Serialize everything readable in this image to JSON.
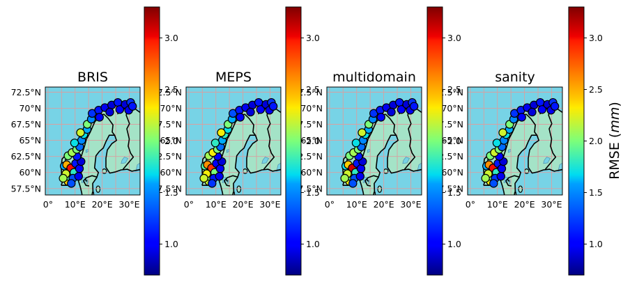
{
  "figure": {
    "panels": [
      {
        "title": "BRIS"
      },
      {
        "title": "MEPS"
      },
      {
        "title": "multidomain"
      },
      {
        "title": "sanity"
      }
    ],
    "lat_ticks": [
      "72.5°N",
      "70°N",
      "67.5°N",
      "65°N",
      "62.5°N",
      "60°N",
      "57.5°N"
    ],
    "lon_ticks": [
      "0°",
      "10°E",
      "20°E",
      "30°E"
    ],
    "colorbar": {
      "ticks": [
        "1.0",
        "1.5",
        "2.0",
        "2.5",
        "3.0"
      ],
      "label_prefix": "RMSE (",
      "label_var": "mm",
      "label_suffix": ")",
      "colormap": "jet",
      "range": [
        0.7,
        3.3
      ]
    },
    "colors": {
      "ocean": "#77d3e6",
      "land": "#a4e3c7",
      "gridline": "#d9a0a0",
      "coast": "#000000"
    }
  },
  "chart_data": {
    "type": "scatter",
    "panels": [
      "BRIS",
      "MEPS",
      "multidomain",
      "sanity"
    ],
    "value_label": "RMSE (mm)",
    "extent": {
      "lon": [
        -1,
        34
      ],
      "lat": [
        56.5,
        73.3
      ]
    },
    "stations": [
      {
        "lon": 7.4,
        "lat": 58.6,
        "v": [
          2.4,
          2.2,
          2.3,
          2.3
        ]
      },
      {
        "lon": 7.6,
        "lat": 59.4,
        "v": [
          1.9,
          2.0,
          1.9,
          1.9
        ]
      },
      {
        "lon": 6.0,
        "lat": 61.0,
        "v": [
          1.6,
          1.9,
          1.7,
          1.6
        ]
      },
      {
        "lon": 6.9,
        "lat": 61.2,
        "v": [
          2.5,
          2.6,
          2.4,
          2.6
        ]
      },
      {
        "lon": 8.4,
        "lat": 60.7,
        "v": [
          3.0,
          2.9,
          3.1,
          3.0
        ]
      },
      {
        "lon": 9.6,
        "lat": 60.0,
        "v": [
          1.8,
          2.0,
          1.8,
          1.8
        ]
      },
      {
        "lon": 9.2,
        "lat": 59.1,
        "v": [
          1.3,
          1.1,
          1.3,
          1.2
        ]
      },
      {
        "lon": 10.2,
        "lat": 61.4,
        "v": [
          1.1,
          1.0,
          1.1,
          1.1
        ]
      },
      {
        "lon": 11.6,
        "lat": 60.6,
        "v": [
          1.0,
          1.0,
          1.0,
          1.0
        ]
      },
      {
        "lon": 11.3,
        "lat": 59.4,
        "v": [
          0.95,
          0.95,
          0.95,
          0.95
        ]
      },
      {
        "lon": 12.2,
        "lat": 61.7,
        "v": [
          0.9,
          0.9,
          0.9,
          0.9
        ]
      },
      {
        "lon": 10.7,
        "lat": 62.5,
        "v": [
          1.1,
          1.0,
          1.1,
          1.0
        ]
      },
      {
        "lon": 7.4,
        "lat": 62.6,
        "v": [
          2.0,
          2.1,
          2.0,
          2.0
        ]
      },
      {
        "lon": 8.9,
        "lat": 63.1,
        "v": [
          2.1,
          2.3,
          2.1,
          2.2
        ]
      },
      {
        "lon": 10.6,
        "lat": 63.6,
        "v": [
          2.0,
          2.0,
          2.0,
          2.0
        ]
      },
      {
        "lon": 11.7,
        "lat": 64.0,
        "v": [
          1.4,
          1.4,
          1.4,
          1.4
        ]
      },
      {
        "lon": 12.4,
        "lat": 65.0,
        "v": [
          1.5,
          1.6,
          1.5,
          1.5
        ]
      },
      {
        "lon": 13.2,
        "lat": 65.9,
        "v": [
          1.7,
          1.8,
          1.7,
          1.7
        ]
      },
      {
        "lon": 14.4,
        "lat": 66.7,
        "v": [
          1.6,
          1.7,
          1.6,
          1.6
        ]
      },
      {
        "lon": 14.5,
        "lat": 67.5,
        "v": [
          2.0,
          2.0,
          2.0,
          2.0
        ]
      },
      {
        "lon": 16.0,
        "lat": 68.3,
        "v": [
          1.5,
          1.6,
          1.5,
          1.5
        ]
      },
      {
        "lon": 16.3,
        "lat": 69.2,
        "v": [
          1.2,
          1.3,
          1.2,
          1.2
        ]
      },
      {
        "lon": 18.7,
        "lat": 69.7,
        "v": [
          1.1,
          1.1,
          1.1,
          1.1
        ]
      },
      {
        "lon": 19.0,
        "lat": 68.6,
        "v": [
          1.0,
          1.0,
          1.0,
          1.0
        ]
      },
      {
        "lon": 21.0,
        "lat": 70.1,
        "v": [
          0.95,
          0.95,
          0.95,
          0.95
        ]
      },
      {
        "lon": 23.5,
        "lat": 70.5,
        "v": [
          0.9,
          0.9,
          0.9,
          0.9
        ]
      },
      {
        "lon": 22.8,
        "lat": 69.4,
        "v": [
          0.9,
          0.9,
          0.9,
          0.9
        ]
      },
      {
        "lon": 25.8,
        "lat": 70.9,
        "v": [
          1.1,
          1.1,
          1.1,
          1.1
        ]
      },
      {
        "lon": 26.5,
        "lat": 69.8,
        "v": [
          1.0,
          1.0,
          1.0,
          1.0
        ]
      },
      {
        "lon": 28.5,
        "lat": 70.6,
        "v": [
          0.9,
          0.9,
          0.9,
          0.9
        ]
      },
      {
        "lon": 30.5,
        "lat": 70.9,
        "v": [
          1.2,
          1.2,
          1.2,
          1.2
        ]
      },
      {
        "lon": 29.8,
        "lat": 69.7,
        "v": [
          0.95,
          0.95,
          0.95,
          0.95
        ]
      },
      {
        "lon": 31.2,
        "lat": 70.3,
        "v": [
          1.1,
          1.1,
          1.1,
          1.1
        ]
      },
      {
        "lon": 12.0,
        "lat": 66.2,
        "v": [
          2.2,
          2.3,
          2.2,
          2.2
        ]
      },
      {
        "lon": 9.8,
        "lat": 64.6,
        "v": [
          1.7,
          1.8,
          1.7,
          1.7
        ]
      },
      {
        "lon": 6.6,
        "lat": 59.8,
        "v": [
          2.2,
          2.3,
          2.2,
          2.2
        ]
      },
      {
        "lon": 5.6,
        "lat": 59.1,
        "v": [
          2.1,
          2.2,
          2.1,
          2.1
        ]
      },
      {
        "lon": 8.6,
        "lat": 58.3,
        "v": [
          1.3,
          1.2,
          1.3,
          1.3
        ]
      }
    ]
  }
}
